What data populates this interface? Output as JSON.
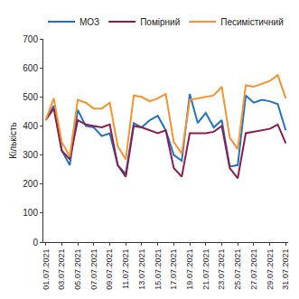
{
  "chart_data": {
    "type": "line",
    "y_label": "Кількість",
    "categories": [
      "01.07.2021",
      null,
      "03.07.2021",
      null,
      "05.07.2021",
      null,
      "07.07.2021",
      null,
      "09.07.2021",
      null,
      "11.07.2021",
      null,
      "13.07.2021",
      null,
      "15.07.2021",
      null,
      "17.07.2021",
      null,
      "19.07.2021",
      null,
      "21.07.2021",
      null,
      "23.07.2021",
      null,
      "25.07.2021",
      null,
      "27.07.2021",
      null,
      "29.07.2021",
      null,
      "31.07.2021"
    ],
    "series": [
      {
        "name": "МОЗ",
        "color": "#1f72c4",
        "values": [
          420,
          470,
          315,
          265,
          455,
          400,
          395,
          365,
          375,
          265,
          235,
          410,
          395,
          420,
          435,
          385,
          300,
          280,
          510,
          410,
          445,
          395,
          420,
          260,
          265,
          505,
          480,
          490,
          485,
          475,
          385
        ]
      },
      {
        "name": "Помірний",
        "color": "#8c1d4f",
        "values": [
          420,
          460,
          315,
          285,
          420,
          405,
          400,
          395,
          405,
          265,
          225,
          400,
          395,
          385,
          375,
          385,
          255,
          225,
          375,
          375,
          375,
          380,
          400,
          255,
          220,
          375,
          380,
          385,
          390,
          405,
          340
        ]
      },
      {
        "name": "Песимістичний",
        "color": "#f7922e",
        "values": [
          420,
          495,
          345,
          295,
          490,
          480,
          460,
          460,
          480,
          330,
          285,
          505,
          500,
          485,
          495,
          510,
          345,
          305,
          490,
          495,
          500,
          505,
          535,
          360,
          320,
          540,
          535,
          545,
          555,
          575,
          495
        ]
      }
    ],
    "ylim": [
      0,
      700
    ],
    "yticks": [
      0,
      100,
      200,
      300,
      400,
      500,
      600,
      700
    ],
    "grid": false,
    "legend": "top"
  }
}
